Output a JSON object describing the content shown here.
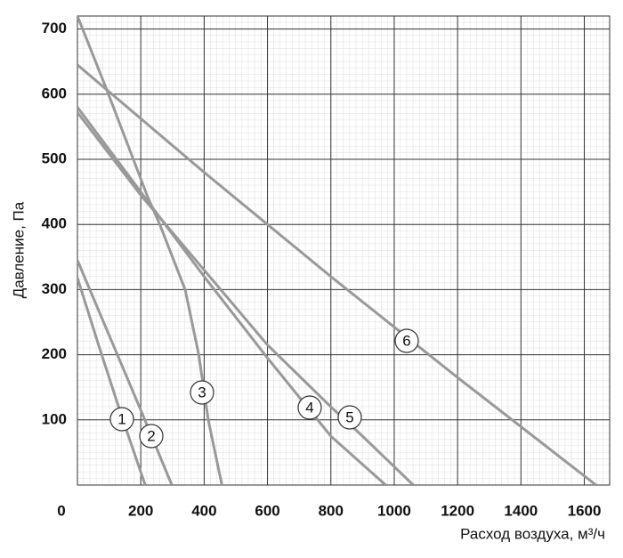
{
  "chart_data": {
    "type": "line",
    "xlabel": "Расход воздуха, м³/ч",
    "ylabel": "Давление, Па",
    "xlim": [
      0,
      1680
    ],
    "ylim": [
      0,
      720
    ],
    "xticks": [
      0,
      200,
      400,
      600,
      800,
      1000,
      1200,
      1400,
      1600
    ],
    "yticks": [
      100,
      200,
      300,
      400,
      500,
      600,
      700
    ],
    "grid": true,
    "series": [
      {
        "name": "1",
        "color": "#999999",
        "x": [
          0,
          70,
          140,
          214
        ],
        "values": [
          318,
          210,
          105,
          0
        ]
      },
      {
        "name": "2",
        "color": "#999999",
        "x": [
          0,
          100,
          200,
          298
        ],
        "values": [
          345,
          230,
          115,
          0
        ]
      },
      {
        "name": "3",
        "color": "#999999",
        "x": [
          0,
          90,
          222,
          260,
          340,
          383,
          413,
          456
        ],
        "values": [
          720,
          610,
          442,
          400,
          300,
          200,
          100,
          0
        ]
      },
      {
        "name": "4",
        "color": "#999999",
        "x": [
          0,
          200,
          400,
          600,
          800,
          973
        ],
        "values": [
          580,
          450,
          320,
          195,
          75,
          0
        ]
      },
      {
        "name": "5",
        "color": "#999999",
        "x": [
          0,
          200,
          400,
          600,
          800,
          900,
          1060
        ],
        "values": [
          572,
          445,
          330,
          215,
          120,
          75,
          0
        ]
      },
      {
        "name": "6",
        "color": "#999999",
        "x": [
          0,
          400,
          800,
          1200,
          1637
        ],
        "values": [
          645,
          480,
          320,
          165,
          0
        ]
      }
    ]
  }
}
